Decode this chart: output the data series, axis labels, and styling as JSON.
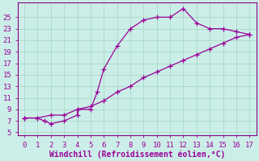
{
  "xlabel": "Windchill (Refroidissement éolien,°C)",
  "bg_color": "#cceee8",
  "grid_color": "#aaddcc",
  "line_color": "#990099",
  "spine_color": "#880088",
  "xlim": [
    -0.5,
    17.5
  ],
  "ylim": [
    4.5,
    27.5
  ],
  "xticks": [
    0,
    1,
    2,
    3,
    4,
    5,
    6,
    7,
    8,
    9,
    10,
    11,
    12,
    13,
    14,
    15,
    16,
    17
  ],
  "yticks": [
    5,
    7,
    9,
    11,
    13,
    15,
    17,
    19,
    21,
    23,
    25
  ],
  "curve1_x": [
    0,
    1,
    1.5,
    2,
    3,
    4,
    4,
    5,
    5.5,
    6,
    7,
    8,
    9,
    10,
    11,
    12,
    13,
    14,
    15,
    16,
    17
  ],
  "curve1_y": [
    7.5,
    7.5,
    7,
    6.5,
    7,
    8,
    9,
    9,
    12,
    16,
    20,
    23,
    24.5,
    25,
    25,
    26.5,
    24,
    23,
    23,
    22.5,
    22
  ],
  "curve2_x": [
    0,
    1,
    2,
    3,
    4,
    5,
    6,
    7,
    8,
    9,
    10,
    11,
    12,
    13,
    14,
    15,
    16,
    17
  ],
  "curve2_y": [
    7.5,
    7.5,
    8,
    8,
    9,
    9.5,
    10.5,
    12,
    13,
    14.5,
    15.5,
    16.5,
    17.5,
    18.5,
    19.5,
    20.5,
    21.5,
    22
  ],
  "tick_fontsize": 6.5,
  "xlabel_fontsize": 7
}
